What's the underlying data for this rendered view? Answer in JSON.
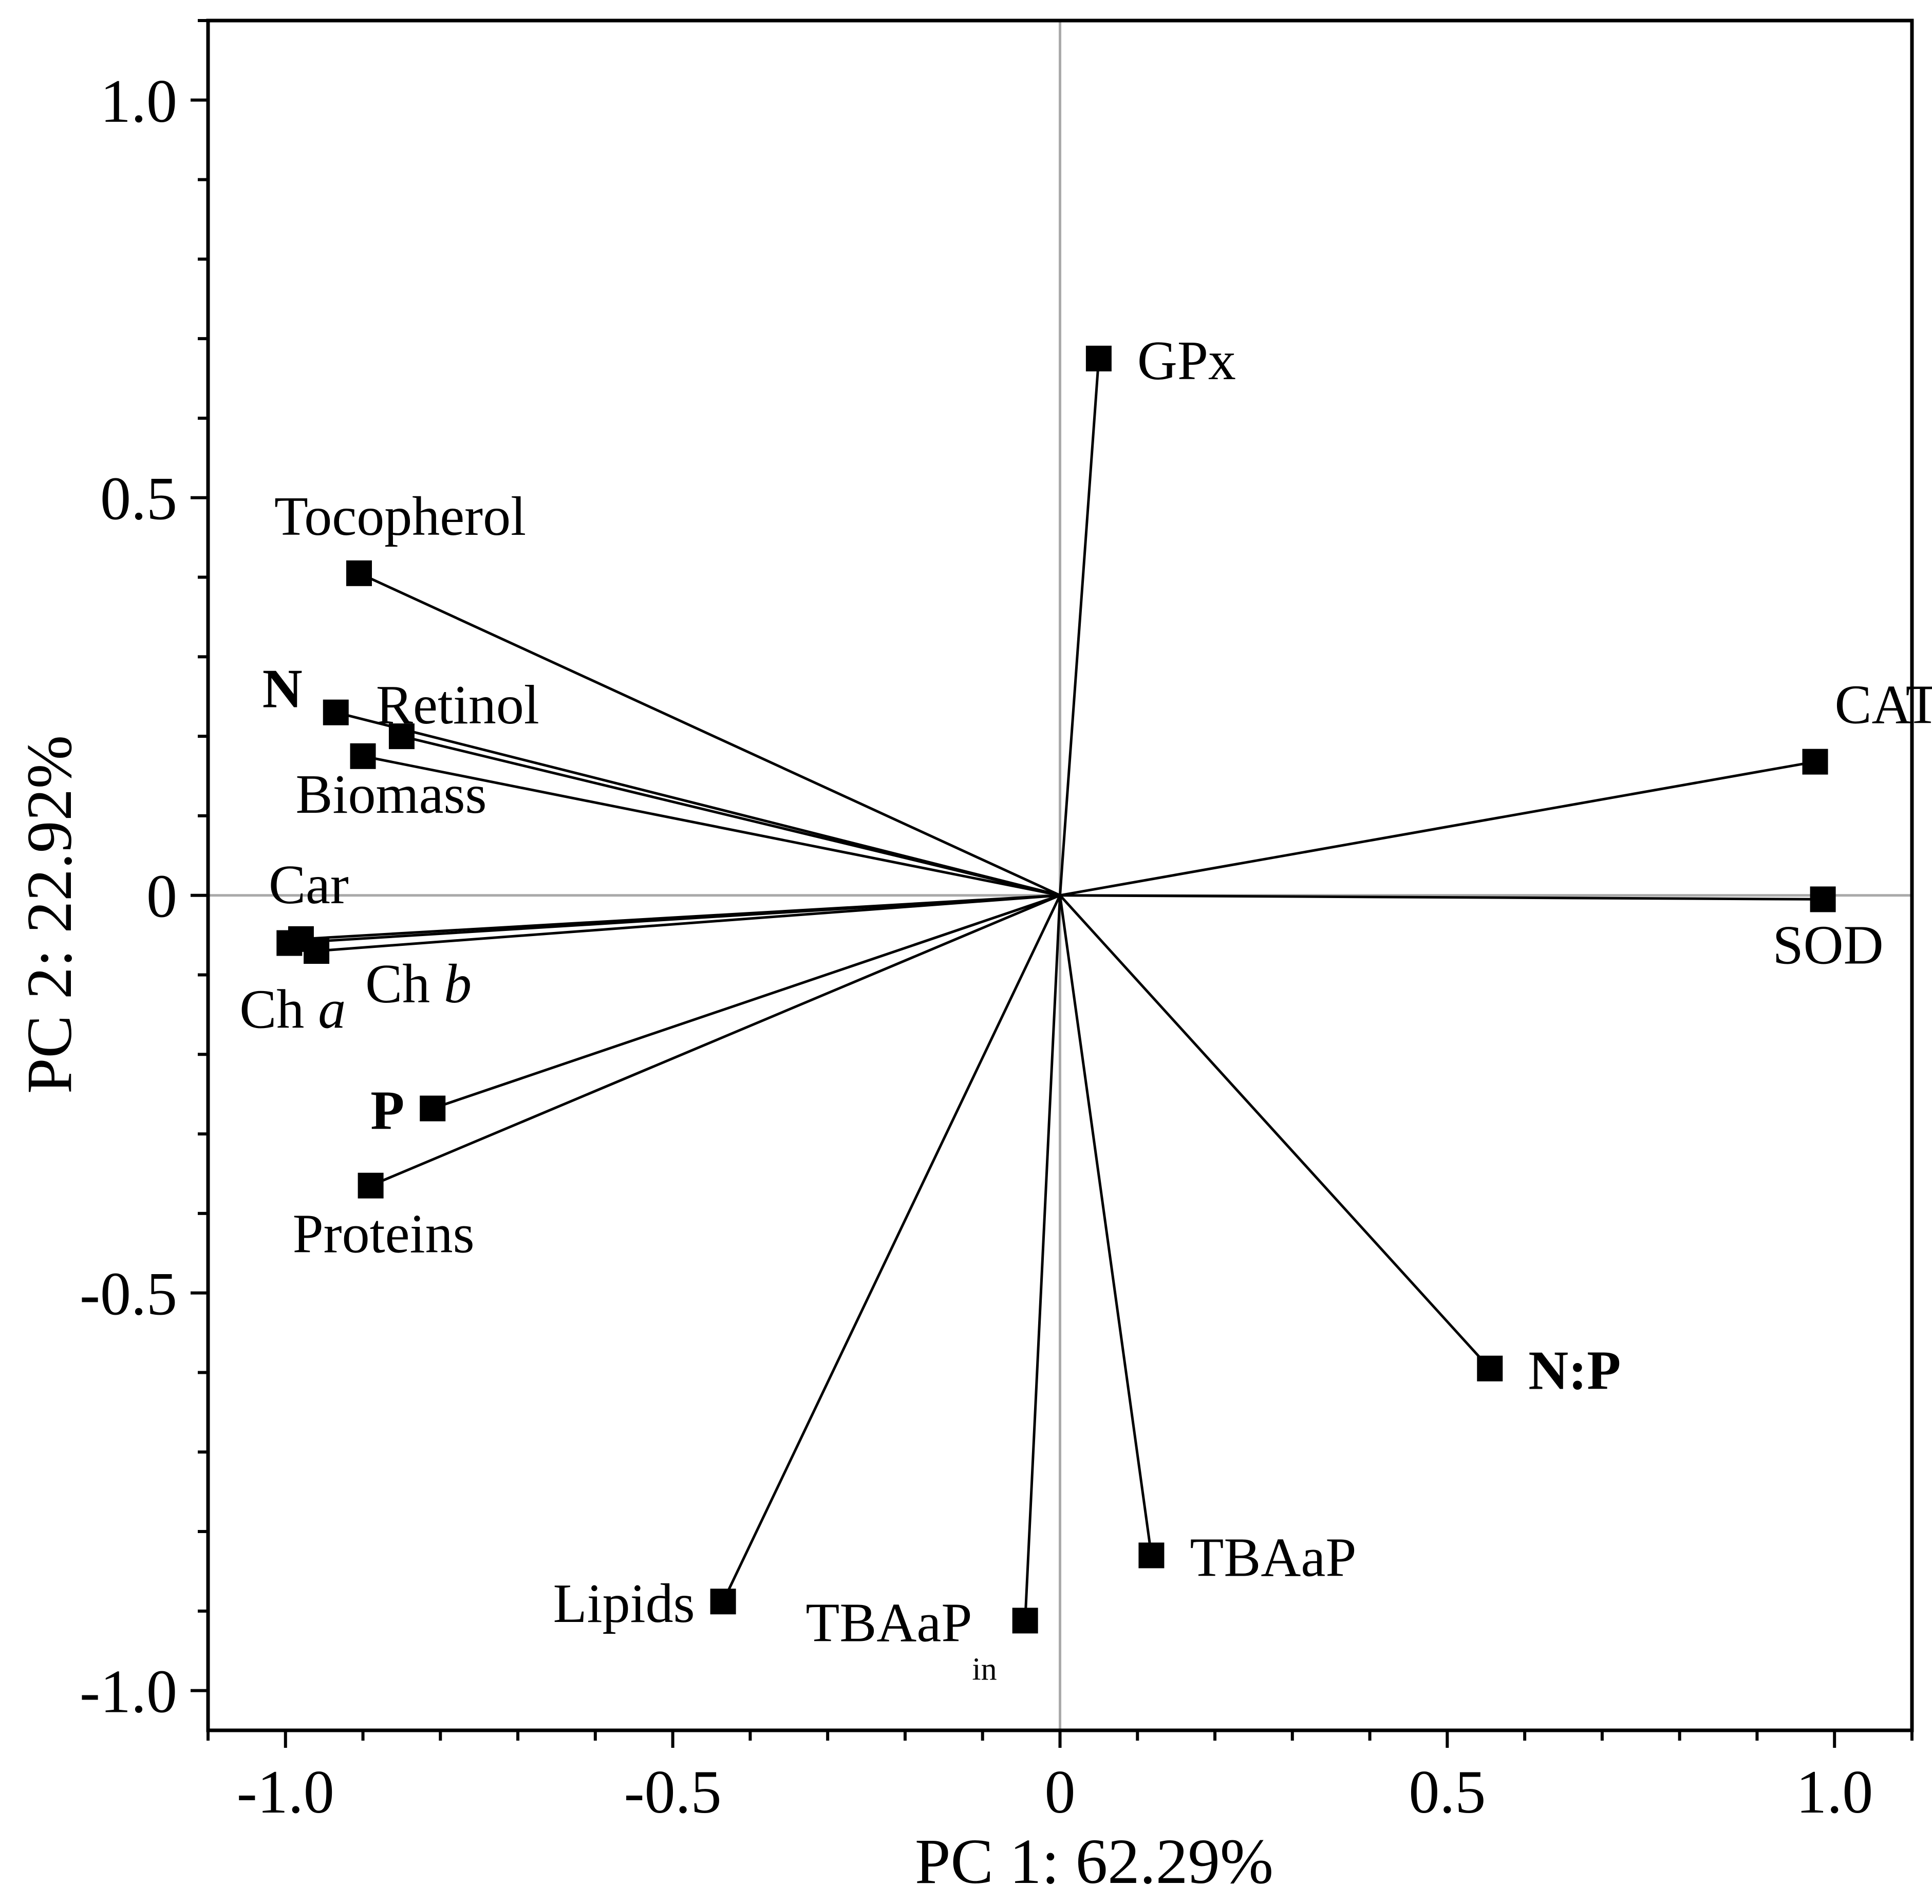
{
  "chart_data": {
    "type": "scatter",
    "subtype": "pca-loadings-biplot",
    "title": "",
    "xlabel": "PC 1: 62.29%",
    "ylabel": "PC 2: 22.92%",
    "xlim": [
      -1.1,
      1.1
    ],
    "ylim": [
      -1.05,
      1.1
    ],
    "xticks": [
      {
        "value": -1.0,
        "label": "-1.0"
      },
      {
        "value": -0.5,
        "label": "-0.5"
      },
      {
        "value": 0,
        "label": "0"
      },
      {
        "value": 0.5,
        "label": "0.5"
      },
      {
        "value": 1.0,
        "label": "1.0"
      }
    ],
    "yticks": [
      {
        "value": 1.0,
        "label": "1.0"
      },
      {
        "value": 0.5,
        "label": "0.5"
      },
      {
        "value": 0,
        "label": "0"
      },
      {
        "value": -0.5,
        "label": "-0.5"
      },
      {
        "value": -1.0,
        "label": "-1.0"
      }
    ],
    "minor_step": 0.1,
    "zero_lines": true,
    "grid": false,
    "legend": "none",
    "marker": "square",
    "vectors_from_origin": true,
    "variables": [
      {
        "name": "GPx",
        "x": 0.05,
        "y": 0.675,
        "bold": false,
        "label_pos": "right"
      },
      {
        "name": "Tocopherol",
        "x": -0.905,
        "y": 0.405,
        "bold": false,
        "label_pos": "above"
      },
      {
        "name": "N",
        "x": -0.935,
        "y": 0.23,
        "bold": true,
        "label_pos": "left-above"
      },
      {
        "name": "Retinol",
        "x": -0.85,
        "y": 0.2,
        "bold": false,
        "label_pos": "right-above"
      },
      {
        "name": "Biomass",
        "x": -0.9,
        "y": 0.175,
        "bold": false,
        "label_pos": "below"
      },
      {
        "name": "CAT",
        "x": 0.975,
        "y": 0.168,
        "bold": false,
        "label_pos": "above"
      },
      {
        "name": "SOD",
        "x": 0.985,
        "y": -0.005,
        "bold": false,
        "label_pos": "below"
      },
      {
        "name": "Car",
        "x": -0.98,
        "y": -0.055,
        "bold": false,
        "label_pos": "above"
      },
      {
        "name": "Ch",
        "suffix": "a",
        "x": -0.995,
        "y": -0.06,
        "bold": false,
        "label_pos": "below-left"
      },
      {
        "name": "Ch",
        "suffix": "b",
        "x": -0.96,
        "y": -0.07,
        "bold": false,
        "label_pos": "below-right"
      },
      {
        "name": "P",
        "x": -0.81,
        "y": -0.268,
        "bold": true,
        "label_pos": "left"
      },
      {
        "name": "Proteins",
        "x": -0.89,
        "y": -0.365,
        "bold": false,
        "label_pos": "below"
      },
      {
        "name": "N:P",
        "x": 0.555,
        "y": -0.595,
        "bold": true,
        "label_pos": "right"
      },
      {
        "name": "TBAaP",
        "x": 0.118,
        "y": -0.83,
        "bold": false,
        "label_pos": "right"
      },
      {
        "name": "Lipids",
        "x": -0.435,
        "y": -0.888,
        "bold": false,
        "label_pos": "left"
      },
      {
        "name": "TBAaP",
        "subscript": "in",
        "x": -0.045,
        "y": -0.912,
        "bold": false,
        "label_pos": "left"
      }
    ]
  }
}
